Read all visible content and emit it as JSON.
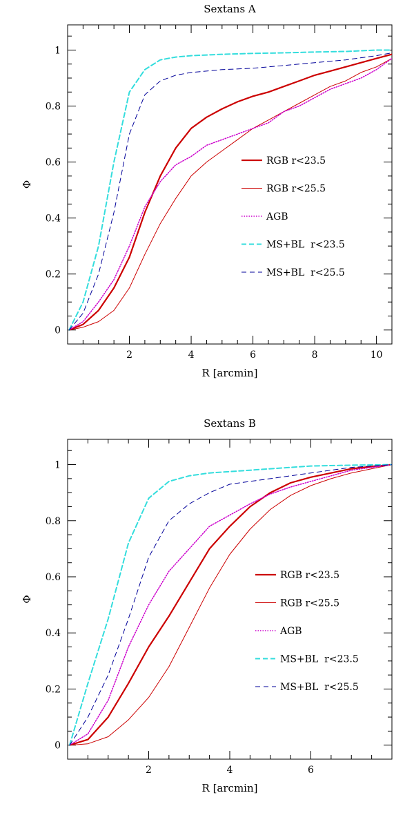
{
  "chart_data": [
    {
      "type": "line",
      "title": "Sextans A",
      "xlabel": "R [arcmin]",
      "ylabel": "Φ",
      "xlim": [
        0,
        10.5
      ],
      "ylim": [
        -0.05,
        1.09
      ],
      "x_major_ticks": [
        2,
        4,
        6,
        8,
        10
      ],
      "y_major_ticks": [
        0,
        0.2,
        0.4,
        0.6,
        0.8,
        1
      ],
      "x_tick_labels": [
        "2",
        "4",
        "6",
        "8",
        "10"
      ],
      "y_tick_labels": [
        "0",
        "0.2",
        "0.4",
        "0.6",
        "0.8",
        "1"
      ],
      "x_minor_step": 0.5,
      "y_minor_step": 0.05,
      "legend_position": "center-right",
      "series": [
        {
          "name": "RGB r<23.5",
          "color": "#cc0000",
          "style": "solid-thick",
          "points": [
            [
              0.05,
              0
            ],
            [
              0.5,
              0.02
            ],
            [
              1,
              0.07
            ],
            [
              1.5,
              0.15
            ],
            [
              2,
              0.26
            ],
            [
              2.5,
              0.42
            ],
            [
              3,
              0.55
            ],
            [
              3.5,
              0.65
            ],
            [
              4,
              0.72
            ],
            [
              4.5,
              0.76
            ],
            [
              5,
              0.79
            ],
            [
              5.5,
              0.815
            ],
            [
              6,
              0.835
            ],
            [
              6.5,
              0.85
            ],
            [
              7,
              0.87
            ],
            [
              7.5,
              0.89
            ],
            [
              8,
              0.91
            ],
            [
              8.5,
              0.925
            ],
            [
              9,
              0.94
            ],
            [
              9.5,
              0.955
            ],
            [
              10,
              0.97
            ],
            [
              10.5,
              0.985
            ]
          ]
        },
        {
          "name": "RGB r<25.5",
          "color": "#cc0000",
          "style": "solid-thin",
          "points": [
            [
              0.05,
              0
            ],
            [
              0.5,
              0.01
            ],
            [
              1,
              0.03
            ],
            [
              1.5,
              0.07
            ],
            [
              2,
              0.15
            ],
            [
              2.5,
              0.27
            ],
            [
              3,
              0.38
            ],
            [
              3.5,
              0.47
            ],
            [
              4,
              0.55
            ],
            [
              4.5,
              0.6
            ],
            [
              5,
              0.64
            ],
            [
              5.5,
              0.68
            ],
            [
              6,
              0.72
            ],
            [
              6.5,
              0.75
            ],
            [
              7,
              0.78
            ],
            [
              7.5,
              0.81
            ],
            [
              8,
              0.84
            ],
            [
              8.5,
              0.87
            ],
            [
              9,
              0.89
            ],
            [
              9.5,
              0.92
            ],
            [
              10,
              0.94
            ],
            [
              10.5,
              0.97
            ]
          ]
        },
        {
          "name": "AGB",
          "color": "#cc00cc",
          "style": "dotted",
          "points": [
            [
              0.05,
              0
            ],
            [
              0.5,
              0.03
            ],
            [
              1,
              0.1
            ],
            [
              1.5,
              0.18
            ],
            [
              2,
              0.3
            ],
            [
              2.5,
              0.44
            ],
            [
              3,
              0.53
            ],
            [
              3.5,
              0.59
            ],
            [
              4,
              0.62
            ],
            [
              4.5,
              0.66
            ],
            [
              5,
              0.68
            ],
            [
              5.5,
              0.7
            ],
            [
              6,
              0.72
            ],
            [
              6.5,
              0.74
            ],
            [
              7,
              0.78
            ],
            [
              7.5,
              0.8
            ],
            [
              8,
              0.83
            ],
            [
              8.5,
              0.86
            ],
            [
              9,
              0.88
            ],
            [
              9.5,
              0.9
            ],
            [
              10,
              0.93
            ],
            [
              10.5,
              0.97
            ]
          ]
        },
        {
          "name": "MS+BL  r<23.5",
          "color": "#33dddd",
          "style": "dashed-thick",
          "points": [
            [
              0.05,
              0
            ],
            [
              0.5,
              0.1
            ],
            [
              1,
              0.3
            ],
            [
              1.5,
              0.6
            ],
            [
              2,
              0.85
            ],
            [
              2.5,
              0.93
            ],
            [
              3,
              0.965
            ],
            [
              3.5,
              0.975
            ],
            [
              4,
              0.98
            ],
            [
              5,
              0.985
            ],
            [
              6,
              0.988
            ],
            [
              7,
              0.99
            ],
            [
              8,
              0.993
            ],
            [
              9,
              0.995
            ],
            [
              10,
              1
            ],
            [
              10.5,
              1
            ]
          ]
        },
        {
          "name": "MS+BL  r<25.5",
          "color": "#000099",
          "style": "dashed-thin",
          "points": [
            [
              0.05,
              0
            ],
            [
              0.5,
              0.06
            ],
            [
              1,
              0.2
            ],
            [
              1.5,
              0.42
            ],
            [
              2,
              0.7
            ],
            [
              2.5,
              0.84
            ],
            [
              3,
              0.89
            ],
            [
              3.5,
              0.91
            ],
            [
              4,
              0.92
            ],
            [
              5,
              0.93
            ],
            [
              6,
              0.935
            ],
            [
              7,
              0.945
            ],
            [
              8,
              0.955
            ],
            [
              9,
              0.965
            ],
            [
              10,
              0.98
            ],
            [
              10.5,
              0.99
            ]
          ]
        }
      ]
    },
    {
      "type": "line",
      "title": "Sextans B",
      "xlabel": "R [arcmin]",
      "ylabel": "Φ",
      "xlim": [
        0,
        8
      ],
      "ylim": [
        -0.05,
        1.09
      ],
      "x_major_ticks": [
        2,
        4,
        6
      ],
      "y_major_ticks": [
        0,
        0.2,
        0.4,
        0.6,
        0.8,
        1
      ],
      "x_tick_labels": [
        "2",
        "4",
        "6"
      ],
      "y_tick_labels": [
        "0",
        "0.2",
        "0.4",
        "0.6",
        "0.8",
        "1"
      ],
      "x_minor_step": 0.5,
      "y_minor_step": 0.05,
      "legend_position": "center-right",
      "series": [
        {
          "name": "RGB r<23.5",
          "color": "#cc0000",
          "style": "solid-thick",
          "points": [
            [
              0.05,
              0
            ],
            [
              0.5,
              0.02
            ],
            [
              1,
              0.1
            ],
            [
              1.5,
              0.22
            ],
            [
              2,
              0.35
            ],
            [
              2.5,
              0.46
            ],
            [
              3,
              0.58
            ],
            [
              3.5,
              0.7
            ],
            [
              4,
              0.78
            ],
            [
              4.5,
              0.85
            ],
            [
              5,
              0.9
            ],
            [
              5.5,
              0.935
            ],
            [
              6,
              0.955
            ],
            [
              6.5,
              0.97
            ],
            [
              7,
              0.985
            ],
            [
              7.5,
              0.993
            ],
            [
              8,
              1
            ]
          ]
        },
        {
          "name": "RGB r<25.5",
          "color": "#cc0000",
          "style": "solid-thin",
          "points": [
            [
              0.05,
              0
            ],
            [
              0.5,
              0.005
            ],
            [
              1,
              0.03
            ],
            [
              1.5,
              0.09
            ],
            [
              2,
              0.17
            ],
            [
              2.5,
              0.28
            ],
            [
              3,
              0.42
            ],
            [
              3.5,
              0.56
            ],
            [
              4,
              0.68
            ],
            [
              4.5,
              0.77
            ],
            [
              5,
              0.84
            ],
            [
              5.5,
              0.89
            ],
            [
              6,
              0.925
            ],
            [
              6.5,
              0.95
            ],
            [
              7,
              0.97
            ],
            [
              7.5,
              0.985
            ],
            [
              8,
              1
            ]
          ]
        },
        {
          "name": "AGB",
          "color": "#cc00cc",
          "style": "dotted",
          "points": [
            [
              0.05,
              0
            ],
            [
              0.5,
              0.04
            ],
            [
              1,
              0.16
            ],
            [
              1.5,
              0.35
            ],
            [
              2,
              0.5
            ],
            [
              2.5,
              0.62
            ],
            [
              3,
              0.7
            ],
            [
              3.5,
              0.78
            ],
            [
              4,
              0.82
            ],
            [
              4.5,
              0.86
            ],
            [
              5,
              0.895
            ],
            [
              5.5,
              0.92
            ],
            [
              6,
              0.94
            ],
            [
              6.5,
              0.96
            ],
            [
              7,
              0.98
            ],
            [
              7.5,
              0.99
            ],
            [
              8,
              1
            ]
          ]
        },
        {
          "name": "MS+BL  r<23.5",
          "color": "#33dddd",
          "style": "dashed-thick",
          "points": [
            [
              0.05,
              0
            ],
            [
              0.5,
              0.22
            ],
            [
              1,
              0.45
            ],
            [
              1.5,
              0.72
            ],
            [
              2,
              0.88
            ],
            [
              2.5,
              0.94
            ],
            [
              3,
              0.96
            ],
            [
              3.5,
              0.97
            ],
            [
              4,
              0.975
            ],
            [
              4.5,
              0.98
            ],
            [
              5,
              0.985
            ],
            [
              5.5,
              0.99
            ],
            [
              6,
              0.995
            ],
            [
              7,
              0.998
            ],
            [
              8,
              1
            ]
          ]
        },
        {
          "name": "MS+BL  r<25.5",
          "color": "#000099",
          "style": "dashed-thin",
          "points": [
            [
              0.05,
              0
            ],
            [
              0.5,
              0.1
            ],
            [
              1,
              0.25
            ],
            [
              1.5,
              0.45
            ],
            [
              2,
              0.67
            ],
            [
              2.5,
              0.8
            ],
            [
              3,
              0.86
            ],
            [
              3.5,
              0.9
            ],
            [
              4,
              0.93
            ],
            [
              4.5,
              0.94
            ],
            [
              5,
              0.95
            ],
            [
              5.5,
              0.96
            ],
            [
              6,
              0.97
            ],
            [
              6.5,
              0.98
            ],
            [
              7,
              0.99
            ],
            [
              7.5,
              0.995
            ],
            [
              8,
              1
            ]
          ]
        }
      ]
    }
  ]
}
